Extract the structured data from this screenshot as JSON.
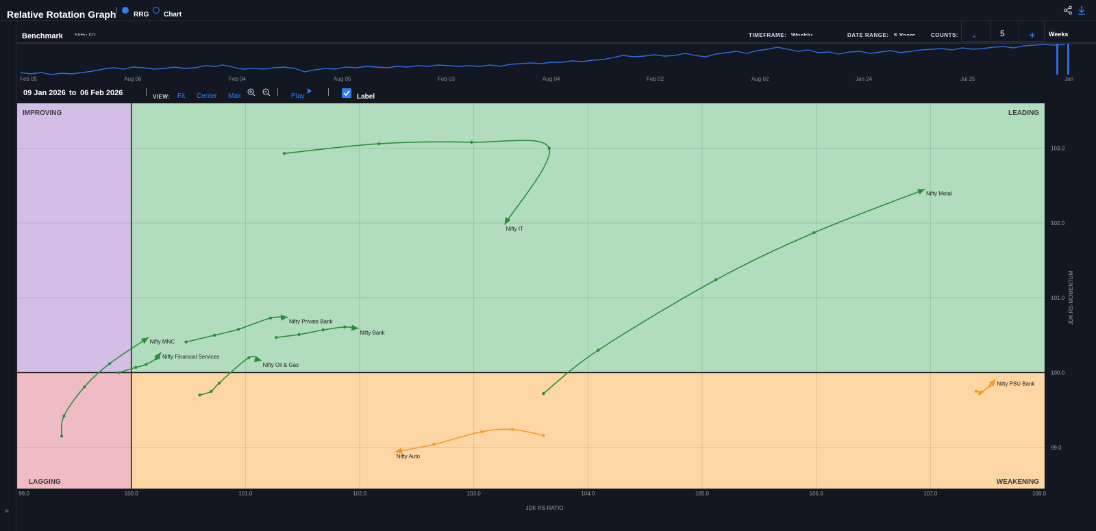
{
  "header": {
    "title": "Relative Rotation Graph",
    "modes": [
      {
        "label": "RRG",
        "selected": true
      },
      {
        "label": "Chart",
        "selected": false
      }
    ],
    "icons": [
      "share-icon",
      "download-icon"
    ]
  },
  "settings": {
    "benchmark_label": "Benchmark",
    "benchmark_value": "Nifty 50",
    "timeframe_label": "TIMEFRAME:",
    "timeframe_value": "Weekly",
    "date_range_label": "DATE RANGE:",
    "date_range_value": "5 Years",
    "counts_label": "COUNTS:",
    "counts_minus": "-",
    "counts_value": "5",
    "counts_plus": "+",
    "counts_unit": "Weeks"
  },
  "timeline": {
    "labels": [
      "Feb 05",
      "Aug 06",
      "Feb 04",
      "Aug 05",
      "Feb 03",
      "Aug 04",
      "Feb 02",
      "Aug 02",
      "Jan 24",
      "Jul 25",
      "Jan"
    ],
    "line_color": "#2d6be4"
  },
  "controls": {
    "date_from": "09 Jan 2026",
    "date_to_word": "to",
    "date_to": "06 Feb 2026",
    "view_label": "VIEW:",
    "view_options": [
      "Fit",
      "Center",
      "Max"
    ],
    "play_label": "Play",
    "label_toggle": "Label",
    "label_checked": true
  },
  "chart_data": {
    "type": "scatter",
    "xlabel": "JDK RS-RATIO",
    "ylabel": "JDK RS-MOMENTUM",
    "xlim": [
      99.0,
      108.0
    ],
    "ylim": [
      98.45,
      103.6
    ],
    "x_ticks": [
      "99.0",
      "100.0",
      "101.0",
      "102.0",
      "103.0",
      "104.0",
      "105.0",
      "106.0",
      "107.0",
      "108.0"
    ],
    "y_ticks": [
      "99.0",
      "100.0",
      "101.0",
      "102.0",
      "103.0"
    ],
    "quadrants": [
      {
        "name": "IMPROVING",
        "color": "#d3bfe6"
      },
      {
        "name": "LEADING",
        "color": "#b1dcbe"
      },
      {
        "name": "LAGGING",
        "color": "#efbcc3"
      },
      {
        "name": "WEAKENING",
        "color": "#fdd6a5"
      }
    ],
    "series": [
      {
        "name": "Nifty IT",
        "color": "#2e8b3e",
        "points": [
          [
            101.34,
            102.93
          ],
          [
            102.17,
            103.06
          ],
          [
            102.98,
            103.08
          ],
          [
            103.66,
            103.0
          ],
          [
            103.27,
            101.98
          ]
        ]
      },
      {
        "name": "Nifty Metal",
        "color": "#2e8b3e",
        "points": [
          [
            103.61,
            99.72
          ],
          [
            104.09,
            100.3
          ],
          [
            105.12,
            101.24
          ],
          [
            105.98,
            101.87
          ],
          [
            106.95,
            102.45
          ]
        ]
      },
      {
        "name": "Nifty Private Bank",
        "color": "#2e8b3e",
        "points": [
          [
            100.48,
            100.41
          ],
          [
            100.73,
            100.5
          ],
          [
            100.94,
            100.58
          ],
          [
            101.22,
            100.73
          ],
          [
            101.37,
            100.74
          ]
        ]
      },
      {
        "name": "Nifty Bank",
        "color": "#2e8b3e",
        "points": [
          [
            101.27,
            100.47
          ],
          [
            101.47,
            100.51
          ],
          [
            101.68,
            100.57
          ],
          [
            101.87,
            100.61
          ],
          [
            101.99,
            100.59
          ]
        ]
      },
      {
        "name": "Nifty MNC",
        "color": "#2e8b3e",
        "points": [
          [
            99.39,
            99.15
          ],
          [
            99.41,
            99.42
          ],
          [
            99.59,
            99.81
          ],
          [
            99.81,
            100.12
          ],
          [
            100.15,
            100.47
          ]
        ]
      },
      {
        "name": "Nifty Financial Services",
        "color": "#2e8b3e",
        "points": [
          [
            99.89,
            100.0
          ],
          [
            100.04,
            100.07
          ],
          [
            100.13,
            100.11
          ],
          [
            100.22,
            100.19
          ],
          [
            100.26,
            100.27
          ]
        ]
      },
      {
        "name": "Nifty Oil & Gas",
        "color": "#2e8b3e",
        "points": [
          [
            100.6,
            99.7
          ],
          [
            100.7,
            99.75
          ],
          [
            100.77,
            99.86
          ],
          [
            101.03,
            100.2
          ],
          [
            101.14,
            100.16
          ]
        ]
      },
      {
        "name": "Nifty PSU Bank",
        "color": "#f39a26",
        "points": [
          [
            107.4,
            99.75
          ],
          [
            107.45,
            99.74
          ],
          [
            107.43,
            99.72
          ],
          [
            107.52,
            99.82
          ],
          [
            107.57,
            99.91
          ]
        ]
      },
      {
        "name": "Nifty Auto",
        "color": "#f39a26",
        "points": [
          [
            103.61,
            99.16
          ],
          [
            103.34,
            99.24
          ],
          [
            103.07,
            99.21
          ],
          [
            102.65,
            99.04
          ],
          [
            102.31,
            98.94
          ]
        ]
      }
    ]
  }
}
